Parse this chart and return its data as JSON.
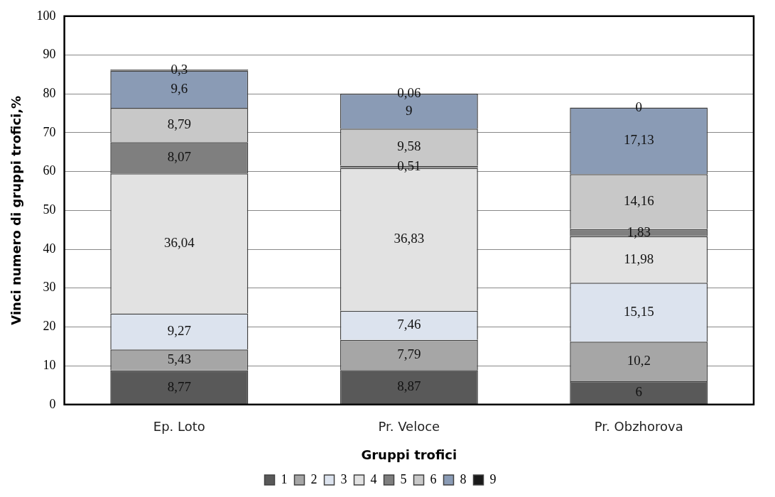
{
  "chart_data": {
    "type": "bar",
    "stacked": true,
    "xlabel": "Gruppi trofici",
    "ylabel": "Vinci numero di gruppi trofici,%",
    "categories": [
      "Ep. Loto",
      "Pr. Veloce",
      "Pr. Obzhorova"
    ],
    "ylim": [
      0,
      100
    ],
    "yticks": [
      0,
      10,
      20,
      30,
      40,
      50,
      60,
      70,
      80,
      90,
      100
    ],
    "grid": "y",
    "legend": "bottom",
    "series": [
      {
        "name": "1",
        "color": "#595959",
        "values": [
          8.77,
          8.87,
          6
        ],
        "value_labels": [
          "8,77",
          "8,87",
          "6"
        ]
      },
      {
        "name": "2",
        "color": "#a6a6a6",
        "values": [
          5.43,
          7.79,
          10.2
        ],
        "value_labels": [
          "5,43",
          "7,79",
          "10,2"
        ]
      },
      {
        "name": "3",
        "color": "#dce3ee",
        "values": [
          9.27,
          7.46,
          15.15
        ],
        "value_labels": [
          "9,27",
          "7,46",
          "15,15"
        ]
      },
      {
        "name": "4",
        "color": "#e2e2e2",
        "values": [
          36.04,
          36.83,
          11.98
        ],
        "value_labels": [
          "36,04",
          "36,83",
          "11,98"
        ]
      },
      {
        "name": "5",
        "color": "#7f7f7f",
        "values": [
          8.07,
          0.51,
          1.83
        ],
        "value_labels": [
          "8,07",
          "0,51",
          "1,83"
        ]
      },
      {
        "name": "6",
        "color": "#c8c8c8",
        "values": [
          8.79,
          9.58,
          14.16
        ],
        "value_labels": [
          "8,79",
          "9,58",
          "14,16"
        ]
      },
      {
        "name": "8",
        "color": "#8a9bb5",
        "values": [
          9.6,
          9,
          17.13
        ],
        "value_labels": [
          "9,6",
          "9",
          "17,13"
        ]
      },
      {
        "name": "9",
        "color": "#1a1a1a",
        "values": [
          0.3,
          0.06,
          0
        ],
        "value_labels": [
          "0,3",
          "0,06",
          "0"
        ]
      }
    ]
  }
}
